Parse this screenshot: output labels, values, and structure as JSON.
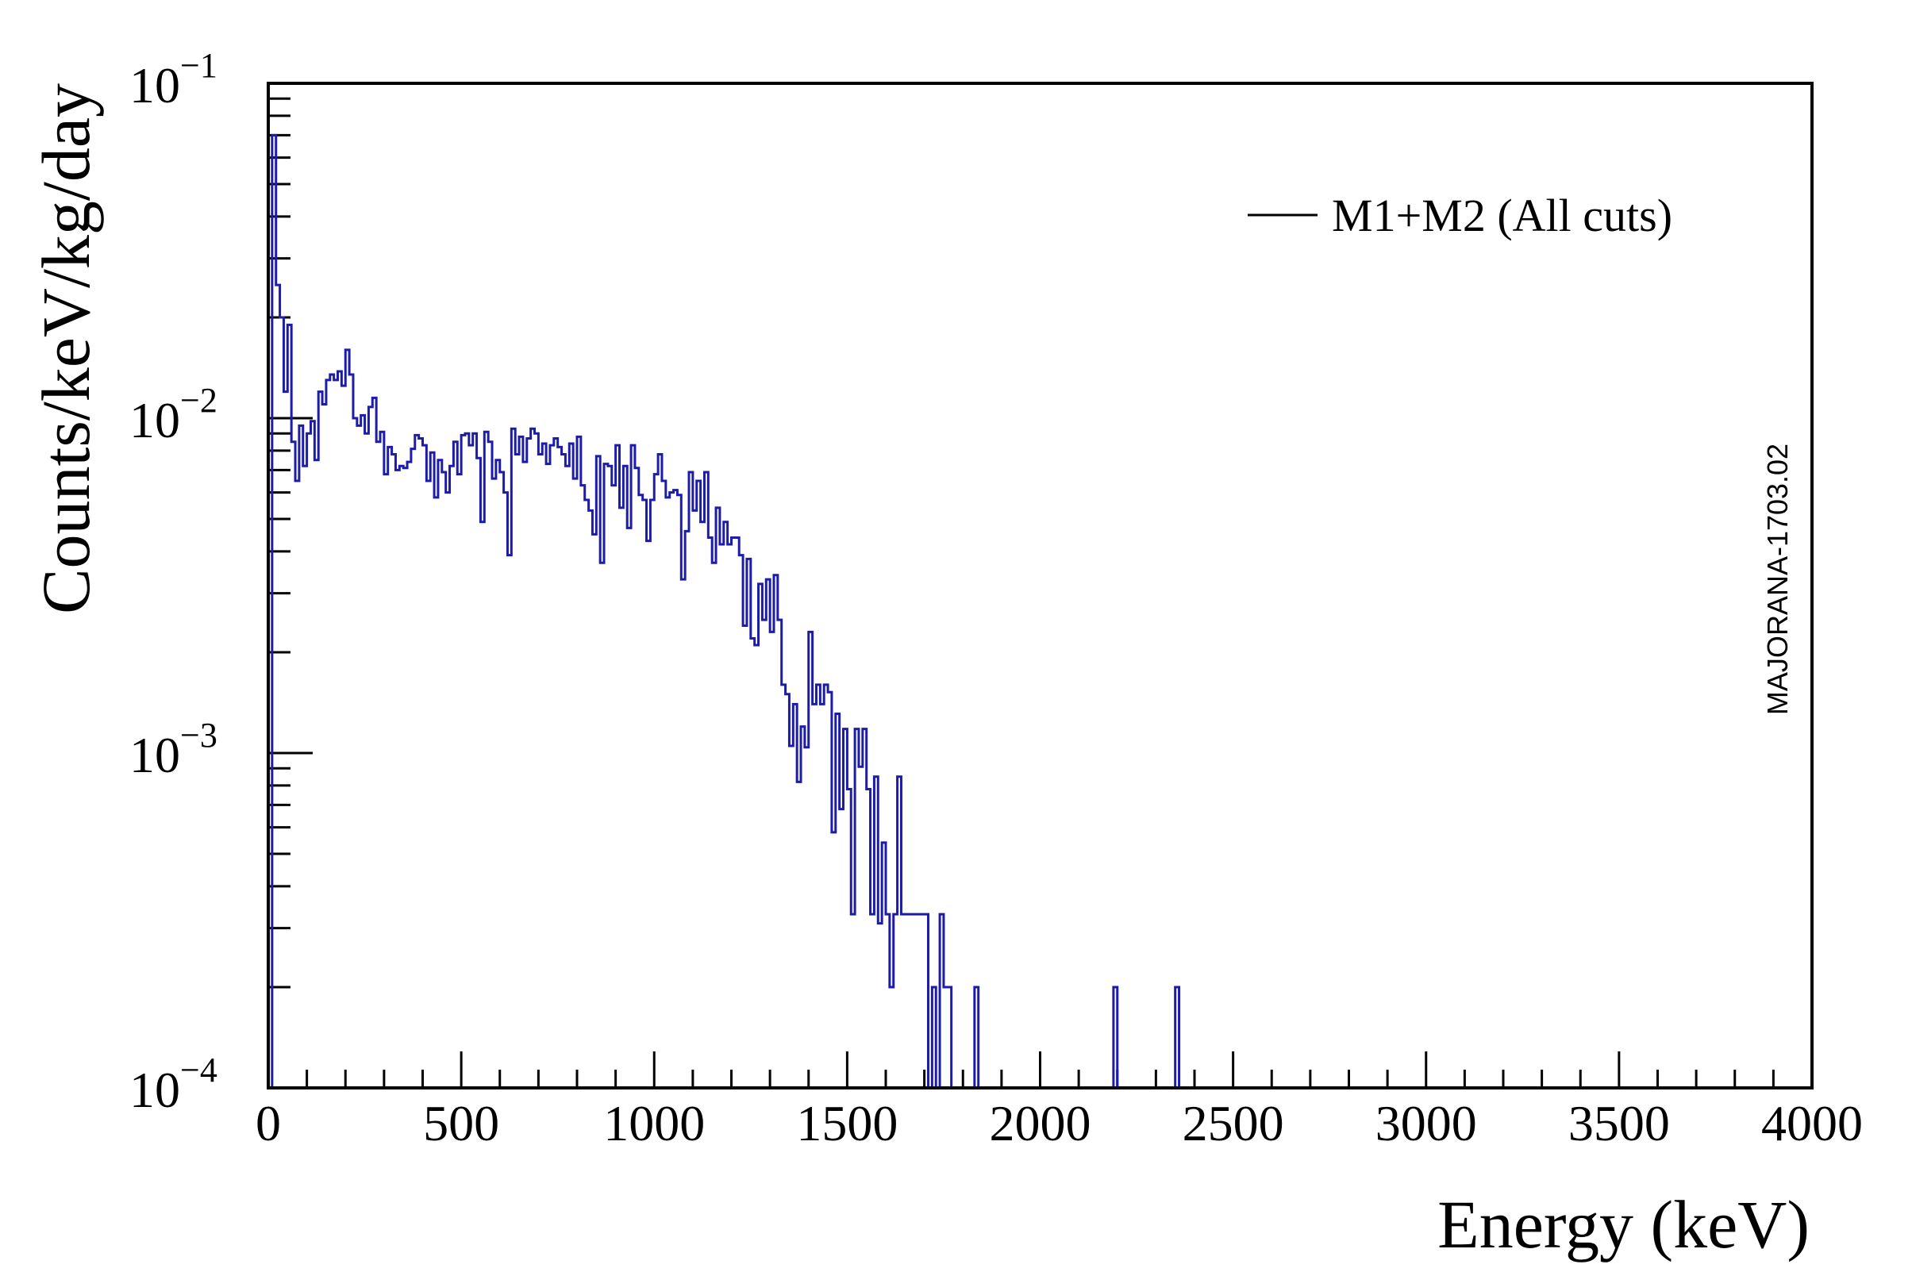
{
  "chart_data": {
    "type": "histogram",
    "xlabel": "Energy (keV)",
    "ylabel": "Counts/keV/kg/day",
    "xlim": [
      0,
      4000
    ],
    "ylim": [
      0.0001,
      0.1
    ],
    "yscale": "log",
    "xticks": [
      "0",
      "500",
      "1000",
      "1500",
      "2000",
      "2500",
      "3000",
      "3500",
      "4000"
    ],
    "yticks": [
      {
        "base": "10",
        "exp": "−4"
      },
      {
        "base": "10",
        "exp": "−3"
      },
      {
        "base": "10",
        "exp": "−2"
      },
      {
        "base": "10",
        "exp": "−1"
      }
    ],
    "legend": {
      "label": "M1+M2 (All cuts)",
      "position": "top-right"
    },
    "annotation": "MAJORANA-1703.02",
    "line_color": "#1c1ca8",
    "bin_width": 10,
    "series": [
      {
        "name": "M1+M2 (All cuts)",
        "bins": [
          [
            0,
            0.0001
          ],
          [
            10,
            0.07
          ],
          [
            20,
            0.025
          ],
          [
            30,
            0.02
          ],
          [
            40,
            0.012
          ],
          [
            50,
            0.019
          ],
          [
            60,
            0.0085
          ],
          [
            70,
            0.0065
          ],
          [
            80,
            0.0095
          ],
          [
            90,
            0.0072
          ],
          [
            100,
            0.009
          ],
          [
            110,
            0.0098
          ],
          [
            120,
            0.0075
          ],
          [
            130,
            0.012
          ],
          [
            140,
            0.011
          ],
          [
            150,
            0.013
          ],
          [
            160,
            0.0135
          ],
          [
            170,
            0.013
          ],
          [
            180,
            0.0138
          ],
          [
            190,
            0.0125
          ],
          [
            200,
            0.016
          ],
          [
            210,
            0.0135
          ],
          [
            220,
            0.01
          ],
          [
            230,
            0.0095
          ],
          [
            240,
            0.0102
          ],
          [
            250,
            0.009
          ],
          [
            260,
            0.0108
          ],
          [
            270,
            0.0115
          ],
          [
            280,
            0.0085
          ],
          [
            290,
            0.0091
          ],
          [
            300,
            0.0068
          ],
          [
            310,
            0.0082
          ],
          [
            320,
            0.0078
          ],
          [
            330,
            0.007
          ],
          [
            340,
            0.0072
          ],
          [
            350,
            0.0071
          ],
          [
            360,
            0.0074
          ],
          [
            370,
            0.0081
          ],
          [
            380,
            0.0089
          ],
          [
            390,
            0.0087
          ],
          [
            400,
            0.0083
          ],
          [
            410,
            0.0065
          ],
          [
            420,
            0.0079
          ],
          [
            430,
            0.0058
          ],
          [
            440,
            0.0075
          ],
          [
            450,
            0.0069
          ],
          [
            460,
            0.006
          ],
          [
            470,
            0.0072
          ],
          [
            480,
            0.0085
          ],
          [
            490,
            0.0068
          ],
          [
            500,
            0.0089
          ],
          [
            510,
            0.009
          ],
          [
            520,
            0.0083
          ],
          [
            530,
            0.009
          ],
          [
            540,
            0.0076
          ],
          [
            550,
            0.0049
          ],
          [
            560,
            0.0091
          ],
          [
            570,
            0.0085
          ],
          [
            580,
            0.0066
          ],
          [
            590,
            0.0075
          ],
          [
            600,
            0.0069
          ],
          [
            610,
            0.006
          ],
          [
            620,
            0.0039
          ],
          [
            630,
            0.0093
          ],
          [
            640,
            0.0078
          ],
          [
            650,
            0.0088
          ],
          [
            660,
            0.0074
          ],
          [
            670,
            0.0087
          ],
          [
            680,
            0.0093
          ],
          [
            690,
            0.009
          ],
          [
            700,
            0.0078
          ],
          [
            710,
            0.0084
          ],
          [
            720,
            0.0073
          ],
          [
            730,
            0.0083
          ],
          [
            740,
            0.0087
          ],
          [
            750,
            0.0082
          ],
          [
            760,
            0.0078
          ],
          [
            770,
            0.0072
          ],
          [
            780,
            0.0084
          ],
          [
            790,
            0.0066
          ],
          [
            800,
            0.0088
          ],
          [
            810,
            0.0063
          ],
          [
            820,
            0.0057
          ],
          [
            830,
            0.0053
          ],
          [
            840,
            0.0045
          ],
          [
            850,
            0.0077
          ],
          [
            860,
            0.0037
          ],
          [
            870,
            0.0073
          ],
          [
            880,
            0.0072
          ],
          [
            890,
            0.0063
          ],
          [
            900,
            0.0083
          ],
          [
            910,
            0.0054
          ],
          [
            920,
            0.0072
          ],
          [
            930,
            0.0047
          ],
          [
            940,
            0.0083
          ],
          [
            950,
            0.0071
          ],
          [
            960,
            0.0059
          ],
          [
            970,
            0.0057
          ],
          [
            980,
            0.0043
          ],
          [
            990,
            0.0057
          ],
          [
            1000,
            0.0068
          ],
          [
            1010,
            0.0078
          ],
          [
            1020,
            0.0065
          ],
          [
            1030,
            0.0058
          ],
          [
            1040,
            0.006
          ],
          [
            1050,
            0.0061
          ],
          [
            1060,
            0.0059
          ],
          [
            1070,
            0.0033
          ],
          [
            1080,
            0.0046
          ],
          [
            1090,
            0.0069
          ],
          [
            1100,
            0.0053
          ],
          [
            1110,
            0.0065
          ],
          [
            1120,
            0.0049
          ],
          [
            1130,
            0.0069
          ],
          [
            1140,
            0.0044
          ],
          [
            1150,
            0.0037
          ],
          [
            1160,
            0.0054
          ],
          [
            1170,
            0.0042
          ],
          [
            1180,
            0.0049
          ],
          [
            1190,
            0.0042
          ],
          [
            1200,
            0.0044
          ],
          [
            1210,
            0.0044
          ],
          [
            1220,
            0.0039
          ],
          [
            1230,
            0.0024
          ],
          [
            1240,
            0.0038
          ],
          [
            1250,
            0.0022
          ],
          [
            1260,
            0.0021
          ],
          [
            1270,
            0.0032
          ],
          [
            1280,
            0.0025
          ],
          [
            1290,
            0.0033
          ],
          [
            1300,
            0.0023
          ],
          [
            1310,
            0.0034
          ],
          [
            1320,
            0.0025
          ],
          [
            1330,
            0.0016
          ],
          [
            1340,
            0.0015
          ],
          [
            1350,
            0.00105
          ],
          [
            1360,
            0.0014
          ],
          [
            1370,
            0.00082
          ],
          [
            1380,
            0.0012
          ],
          [
            1390,
            0.00104
          ],
          [
            1400,
            0.0023
          ],
          [
            1410,
            0.0014
          ],
          [
            1420,
            0.0016
          ],
          [
            1430,
            0.0014
          ],
          [
            1440,
            0.0016
          ],
          [
            1450,
            0.00152
          ],
          [
            1460,
            0.00058
          ],
          [
            1470,
            0.00131
          ],
          [
            1480,
            0.00068
          ],
          [
            1490,
            0.00118
          ],
          [
            1500,
            0.00078
          ],
          [
            1510,
            0.00033
          ],
          [
            1520,
            0.00118
          ],
          [
            1530,
            0.00091
          ],
          [
            1540,
            0.00118
          ],
          [
            1550,
            0.00078
          ],
          [
            1560,
            0.00033
          ],
          [
            1570,
            0.00085
          ],
          [
            1580,
            0.00031
          ],
          [
            1590,
            0.00054
          ],
          [
            1600,
            0.00033
          ],
          [
            1610,
            0.0002
          ],
          [
            1620,
            0.00033
          ],
          [
            1630,
            0.00085
          ],
          [
            1640,
            0.00033
          ],
          [
            1650,
            0.00033
          ],
          [
            1660,
            0.00033
          ],
          [
            1670,
            0.00033
          ],
          [
            1680,
            0.00033
          ],
          [
            1690,
            0.00033
          ],
          [
            1700,
            0.00033
          ],
          [
            1710,
            0.0001
          ],
          [
            1720,
            0.0002
          ],
          [
            1730,
            0.0001
          ],
          [
            1740,
            0.00033
          ],
          [
            1750,
            0.0002
          ],
          [
            1760,
            0.0002
          ],
          [
            1770,
            0.0001
          ],
          [
            1780,
            0.0001
          ],
          [
            1790,
            0.0001
          ],
          [
            1800,
            0.0001
          ],
          [
            1810,
            0.0001
          ],
          [
            1820,
            0.0001
          ],
          [
            1830,
            0.0002
          ],
          [
            2190,
            0.0002
          ],
          [
            2350,
            0.0002
          ]
        ]
      }
    ]
  }
}
